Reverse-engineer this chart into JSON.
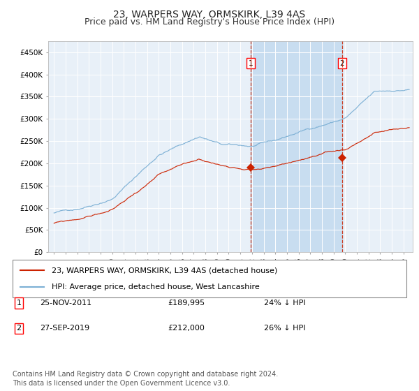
{
  "title": "23, WARPERS WAY, ORMSKIRK, L39 4AS",
  "subtitle": "Price paid vs. HM Land Registry's House Price Index (HPI)",
  "hpi_color": "#7bafd4",
  "price_color": "#cc2200",
  "background_color": "#ffffff",
  "plot_bg_color": "#e8f0f8",
  "shaded_region_color": "#c8ddf0",
  "ylim": [
    0,
    475000
  ],
  "yticks": [
    0,
    50000,
    100000,
    150000,
    200000,
    250000,
    300000,
    350000,
    400000,
    450000
  ],
  "ytick_labels": [
    "£0",
    "£50K",
    "£100K",
    "£150K",
    "£200K",
    "£250K",
    "£300K",
    "£350K",
    "£400K",
    "£450K"
  ],
  "xlim_start": 1994.5,
  "xlim_end": 2025.8,
  "sale1_date": 2011.9,
  "sale1_price": 189995,
  "sale2_date": 2019.73,
  "sale2_price": 212000,
  "legend_label_price": "23, WARPERS WAY, ORMSKIRK, L39 4AS (detached house)",
  "legend_label_hpi": "HPI: Average price, detached house, West Lancashire",
  "table_row1": [
    "1",
    "25-NOV-2011",
    "£189,995",
    "24% ↓ HPI"
  ],
  "table_row2": [
    "2",
    "27-SEP-2019",
    "£212,000",
    "26% ↓ HPI"
  ],
  "footer": "Contains HM Land Registry data © Crown copyright and database right 2024.\nThis data is licensed under the Open Government Licence v3.0.",
  "title_fontsize": 10,
  "subtitle_fontsize": 9,
  "tick_fontsize": 7.5,
  "legend_fontsize": 8,
  "table_fontsize": 8,
  "footer_fontsize": 7
}
